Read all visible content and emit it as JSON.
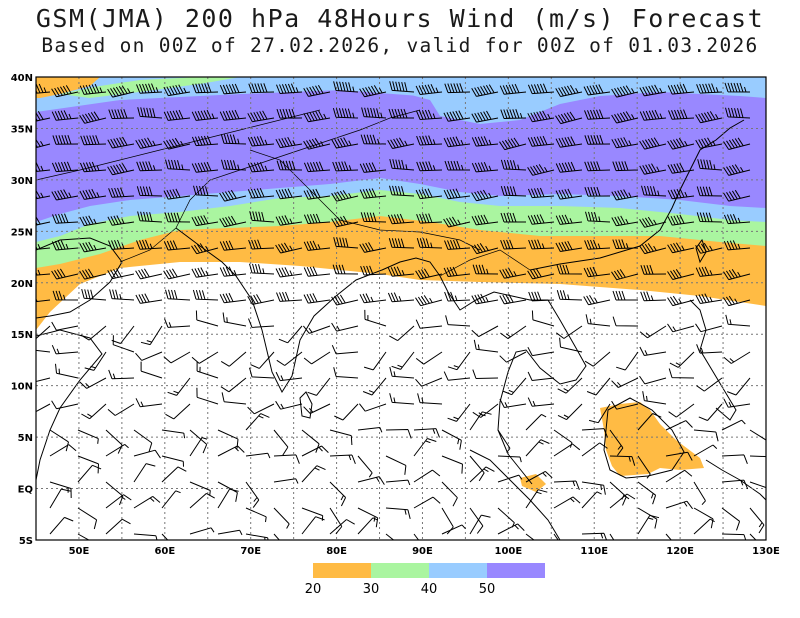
{
  "title": {
    "line1": "GSM(JMA) 200 hPa 48Hours Wind (m/s) Forecast",
    "line2": "Based on 00Z of 27.02.2026, valid for 00Z of 01.03.2026"
  },
  "axes": {
    "lat_labels": [
      "40N",
      "35N",
      "30N",
      "25N",
      "20N",
      "15N",
      "10N",
      "5N",
      "EQ",
      "5S"
    ],
    "lon_labels": [
      "50E",
      "60E",
      "70E",
      "80E",
      "90E",
      "100E",
      "110E",
      "120E",
      "130E"
    ]
  },
  "legend": {
    "labels": [
      "20",
      "30",
      "40",
      "50"
    ],
    "colors": [
      "#ffbb44",
      "#aaf5a0",
      "#99ccff",
      "#9988ff"
    ]
  },
  "colors": {
    "speed_20_30": "#ffbb44",
    "speed_30_40": "#aaf5a0",
    "speed_40_50": "#99ccff",
    "speed_50_plus": "#9988ff"
  }
}
